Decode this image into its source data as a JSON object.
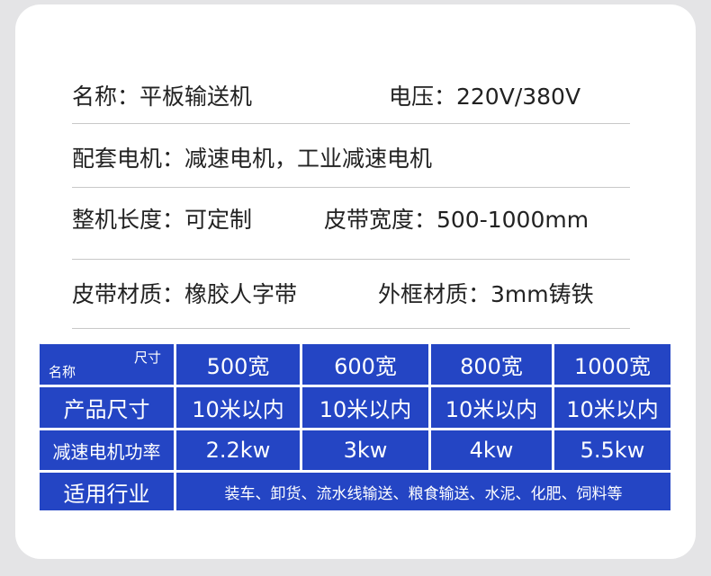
{
  "specs": [
    [
      "名称：平板输送机",
      "电压：220V/380V"
    ],
    [
      "配套电机：减速电机，工业减速电机"
    ],
    [
      "整机长度：可定制",
      "皮带宽度：500-1000mm"
    ],
    [
      "皮带材质：橡胶人字带",
      "外框材质：3mm铸铁"
    ]
  ],
  "table": {
    "corner": {
      "top": "尺寸",
      "bottom": "名称"
    },
    "columns": [
      "500宽",
      "600宽",
      "800宽",
      "1000宽"
    ],
    "rows": [
      {
        "label": "产品尺寸",
        "cells": [
          "10米以内",
          "10米以内",
          "10米以内",
          "10米以内"
        ]
      },
      {
        "label": "减速电机功率",
        "cells": [
          "2.2kw",
          "3kw",
          "4kw",
          "5.5kw"
        ]
      },
      {
        "label": "适用行业",
        "cells": [
          "装车、卸货、流水线输送、粮食输送、水泥、化肥、饲料等"
        ]
      }
    ]
  }
}
